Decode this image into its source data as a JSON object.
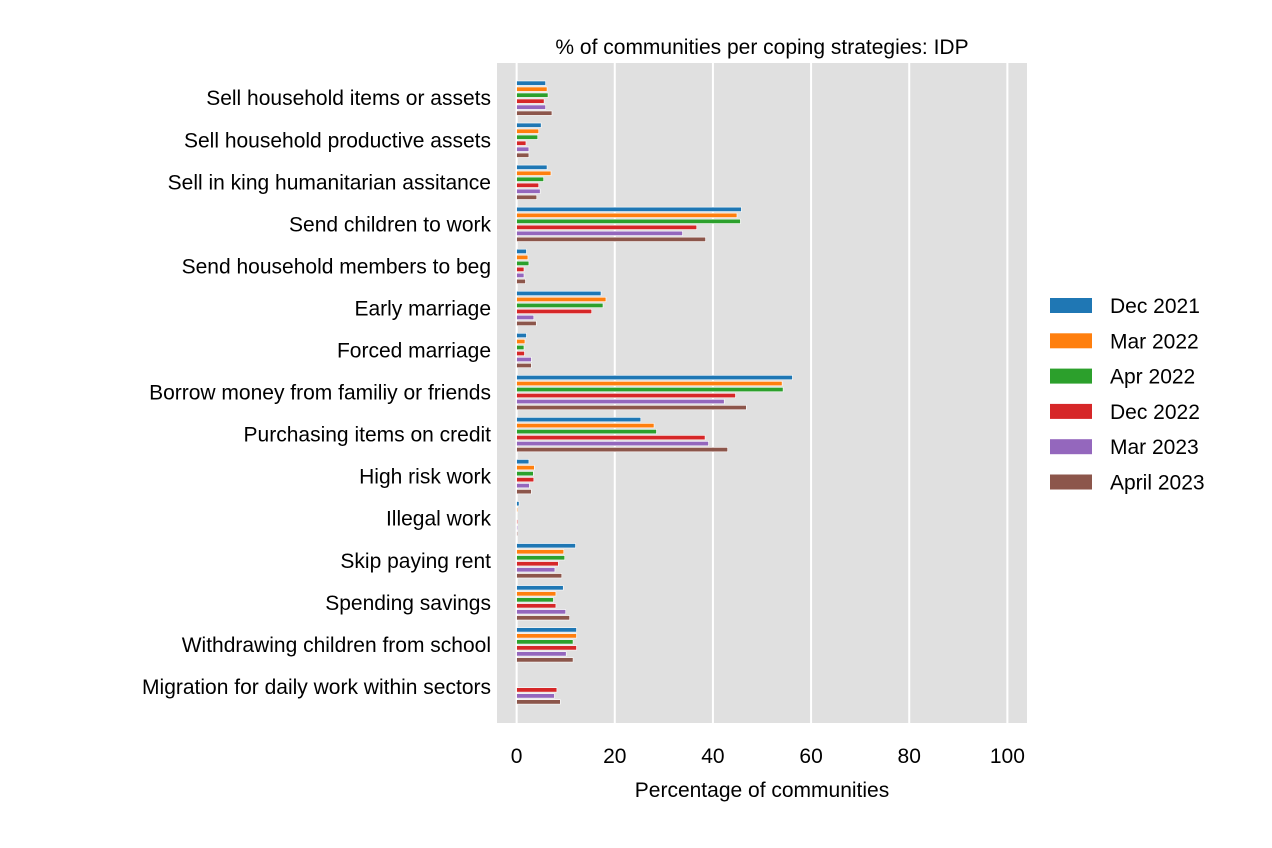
{
  "chart_data": {
    "type": "bar",
    "orientation": "horizontal",
    "title": "% of communities per coping strategies: IDP",
    "xlabel": "Percentage of communities",
    "ylabel": "",
    "xlim": [
      -4,
      104
    ],
    "xticks": [
      0,
      20,
      40,
      60,
      80,
      100
    ],
    "grid": true,
    "legend_position": "right",
    "categories": [
      "Sell household items or assets",
      "Sell household productive assets",
      "Sell in king humanitarian assitance",
      "Send children to work",
      "Send household members to beg",
      "Early marriage",
      "Forced marriage",
      "Borrow money from familiy or friends",
      "Purchasing items on credit",
      "High risk work",
      "Illegal work",
      "Skip paying rent",
      "Spending savings",
      "Withdrawing children from school",
      "Migration for daily work within sectors"
    ],
    "series": [
      {
        "name": "Dec 2021",
        "color": "#1f77b4",
        "values": [
          5.9,
          5.0,
          6.2,
          45.8,
          2.0,
          17.2,
          2.0,
          56.2,
          25.3,
          2.5,
          0.5,
          12.0,
          9.5,
          12.2,
          null
        ]
      },
      {
        "name": "Mar 2022",
        "color": "#ff7f0e",
        "values": [
          6.2,
          4.5,
          7.0,
          44.9,
          2.3,
          18.2,
          1.7,
          54.1,
          28.0,
          3.6,
          0.2,
          9.6,
          8.0,
          12.2,
          null
        ]
      },
      {
        "name": "Apr 2022",
        "color": "#2ca02c",
        "values": [
          6.4,
          4.3,
          5.5,
          45.6,
          2.5,
          17.6,
          1.5,
          54.3,
          28.5,
          3.4,
          0.1,
          9.8,
          7.5,
          11.5,
          null
        ]
      },
      {
        "name": "Dec 2022",
        "color": "#d62728",
        "values": [
          5.6,
          1.9,
          4.5,
          36.7,
          1.5,
          15.3,
          1.6,
          44.6,
          38.4,
          3.5,
          0.2,
          8.5,
          8.0,
          12.2,
          8.2
        ]
      },
      {
        "name": "Mar 2023",
        "color": "#9467bd",
        "values": [
          5.9,
          2.5,
          4.8,
          33.8,
          1.5,
          3.5,
          3.0,
          42.3,
          39.1,
          2.6,
          0.2,
          7.8,
          10.0,
          10.1,
          7.7
        ]
      },
      {
        "name": "April 2023",
        "color": "#8c564b",
        "values": [
          7.2,
          2.5,
          4.1,
          38.5,
          1.8,
          4.0,
          3.0,
          46.8,
          43.0,
          3.0,
          0.2,
          9.2,
          10.8,
          11.5,
          8.9
        ]
      }
    ]
  }
}
